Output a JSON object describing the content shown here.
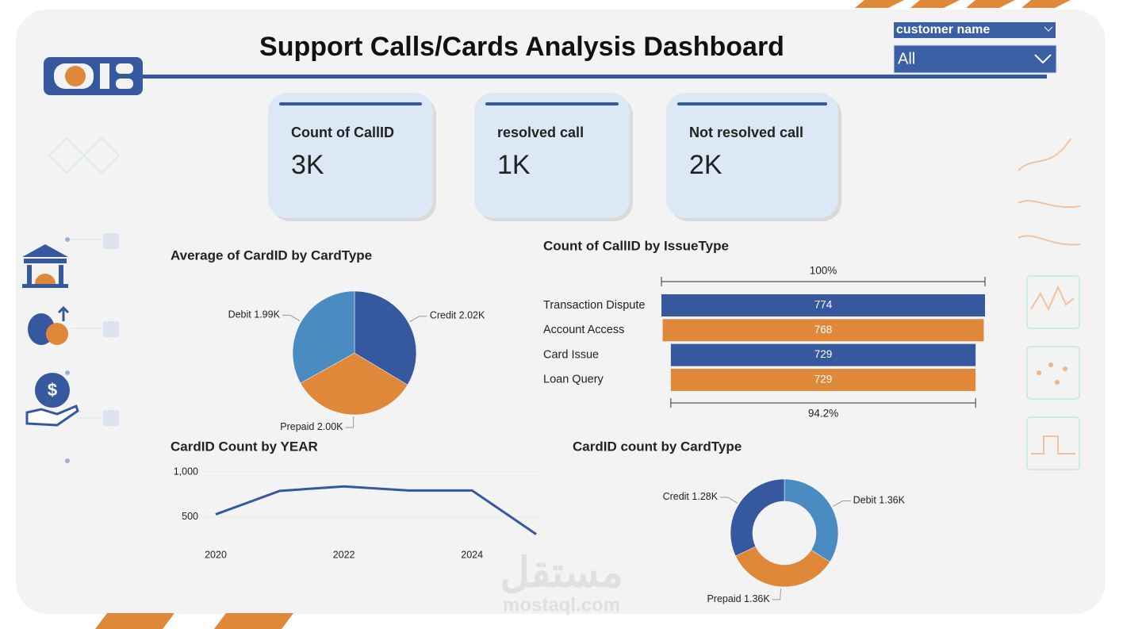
{
  "title": "Support Calls/Cards Analysis Dashboard",
  "slicer": {
    "label": "customer name",
    "value": "All"
  },
  "kpis": [
    {
      "label": "Count of CallID",
      "value": "3K"
    },
    {
      "label": "resolved call",
      "value": "1K"
    },
    {
      "label": "Not resolved call",
      "value": "2K"
    }
  ],
  "watermark": {
    "arabic": "مستقل",
    "latin": "mostaql.com"
  },
  "chart_data": [
    {
      "type": "pie",
      "title": "Average of CardID by CardType",
      "categories": [
        "Credit",
        "Prepaid",
        "Debit"
      ],
      "values": [
        2020,
        2000,
        1990
      ],
      "value_labels": [
        "2.02K",
        "2.00K",
        "1.99K"
      ],
      "colors": [
        "#35589e",
        "#e0883a",
        "#4a8bc2"
      ]
    },
    {
      "type": "funnel",
      "title": "Count of CallID by IssueType",
      "categories": [
        "Transaction Dispute",
        "Account Access",
        "Card Issue",
        "Loan Query"
      ],
      "values": [
        774,
        768,
        729,
        729
      ],
      "colors": [
        "#35589e",
        "#e0883a",
        "#35589e",
        "#e0883a"
      ],
      "top_label": "100%",
      "bottom_label": "94.2%"
    },
    {
      "type": "line",
      "title": "CardID Count by YEAR",
      "x": [
        2020,
        2021,
        2022,
        2023,
        2024,
        2025
      ],
      "values": [
        530,
        790,
        840,
        795,
        795,
        310
      ],
      "xlim": [
        2020,
        2025
      ],
      "xticks": [
        2020,
        2022,
        2024
      ],
      "ylim": [
        200,
        1000
      ],
      "yticks": [
        {
          "value": 1000,
          "label": "1,000"
        },
        500
      ],
      "grid": true,
      "color": "#35589e"
    },
    {
      "type": "donut",
      "title": "CardID count by CardType",
      "categories": [
        "Debit",
        "Prepaid",
        "Credit"
      ],
      "values": [
        1360,
        1360,
        1280
      ],
      "value_labels": [
        "1.36K",
        "1.36K",
        "1.28K"
      ],
      "colors": [
        "#4a8bc2",
        "#e0883a",
        "#35589e"
      ]
    }
  ]
}
